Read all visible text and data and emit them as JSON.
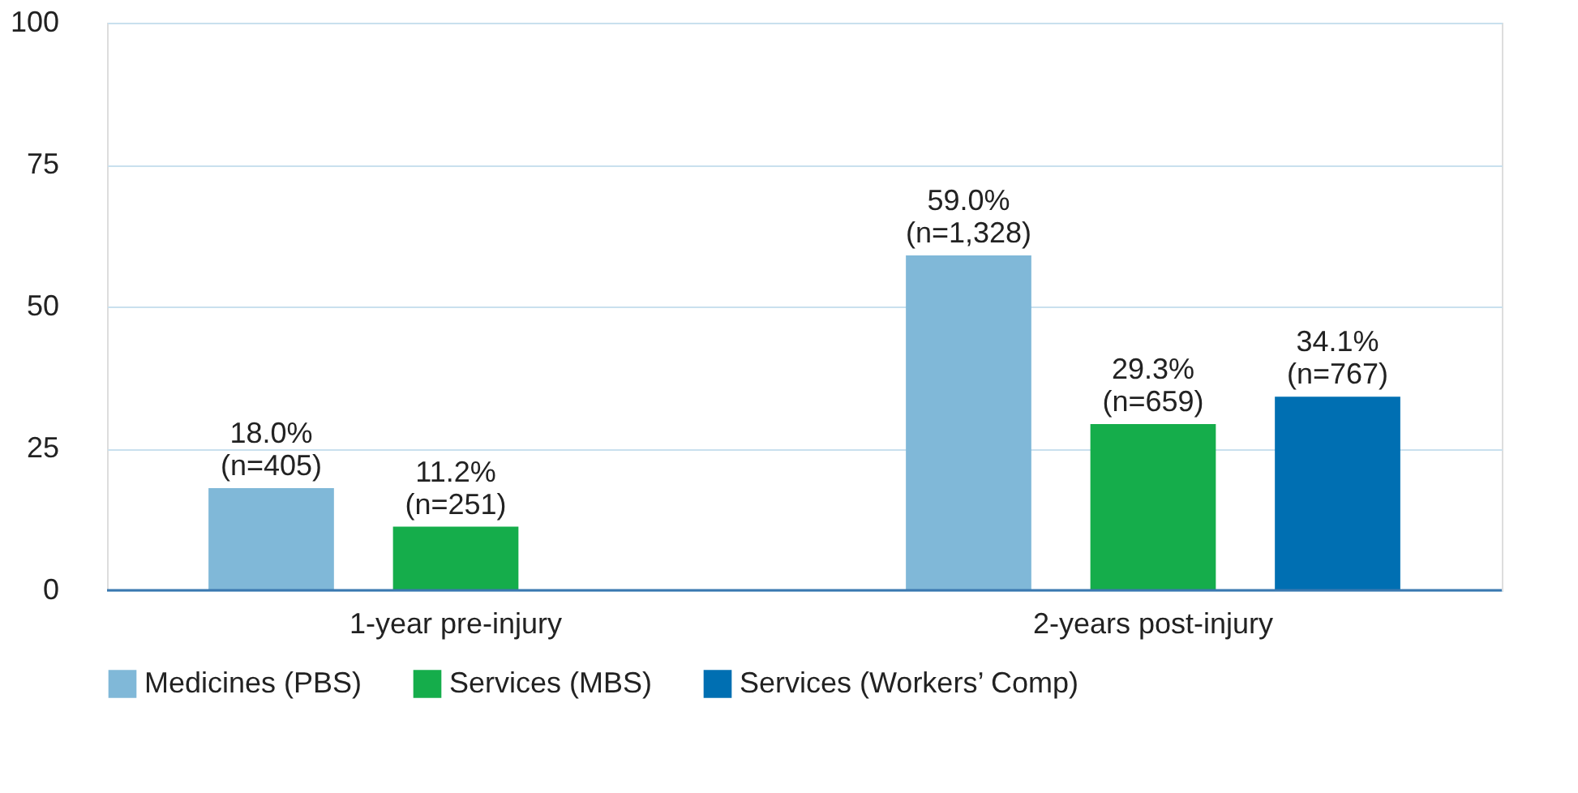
{
  "chart_data": {
    "type": "bar",
    "categories": [
      "1-year pre-injury",
      "2-years post-injury"
    ],
    "series": [
      {
        "name": "Medicines (PBS)",
        "color": "#80b8d8",
        "values": [
          18.0,
          59.0
        ],
        "value_labels": [
          "18.0%\n(n=405)",
          "59.0%\n(n=1,328)"
        ]
      },
      {
        "name": "Services (MBS)",
        "color": "#15ad4b",
        "values": [
          11.2,
          29.3
        ],
        "value_labels": [
          "11.2%\n(n=251)",
          "29.3%\n(n=659)"
        ]
      },
      {
        "name": "Services (Workers’ Comp)",
        "color": "#006fb2",
        "values": [
          null,
          34.1
        ],
        "value_labels": [
          null,
          "34.1%\n(n=767)"
        ]
      }
    ],
    "ylim": [
      0,
      100
    ],
    "yticks": [
      0,
      25,
      50,
      75,
      100
    ],
    "grid": "y",
    "legend": "bottom"
  }
}
